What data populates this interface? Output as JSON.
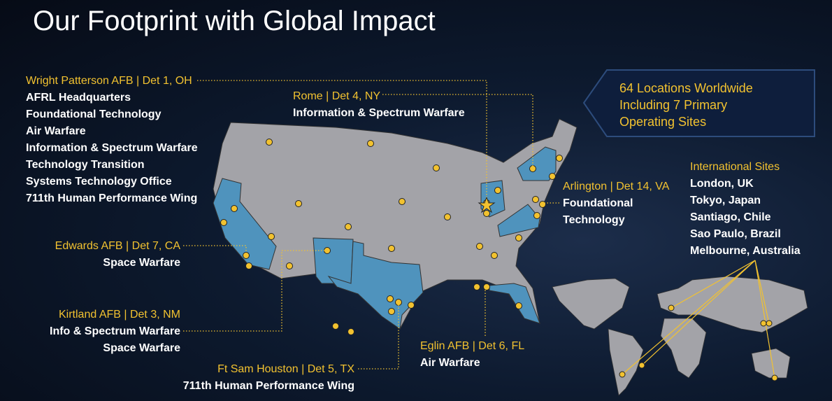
{
  "title": "Our Footprint with Global Impact",
  "sites": [
    {
      "label": "Wright Patterson AFB | Det 1, OH",
      "items": [
        "AFRL Headquarters",
        "Foundational Technology",
        "Air Warfare",
        "Information & Spectrum Warfare",
        "Technology Transition",
        "Systems Technology Office",
        "711th Human Performance Wing"
      ]
    },
    {
      "label": "Rome | Det 4, NY",
      "items": [
        "Information & Spectrum Warfare"
      ]
    },
    {
      "label": "Arlington | Det 14, VA",
      "items": [
        "Foundational",
        "Technology"
      ]
    },
    {
      "label": "Edwards AFB | Det 7, CA",
      "items": [
        "Space Warfare"
      ]
    },
    {
      "label": "Kirtland AFB | Det 3, NM",
      "items": [
        "Info & Spectrum Warfare",
        "Space Warfare"
      ]
    },
    {
      "label": "Ft Sam Houston | Det 5, TX",
      "items": [
        "711th Human Performance Wing"
      ]
    },
    {
      "label": "Eglin AFB | Det 6, FL",
      "items": [
        "Air Warfare"
      ]
    }
  ],
  "callout": {
    "lines": [
      "64 Locations Worldwide",
      "Including 7 Primary",
      "Operating Sites"
    ]
  },
  "international": {
    "label": "International Sites",
    "items": [
      "London, UK",
      "Tokyo, Japan",
      "Santiago, Chile",
      "Sao Paulo, Brazil",
      "Melbourne, Australia"
    ]
  }
}
